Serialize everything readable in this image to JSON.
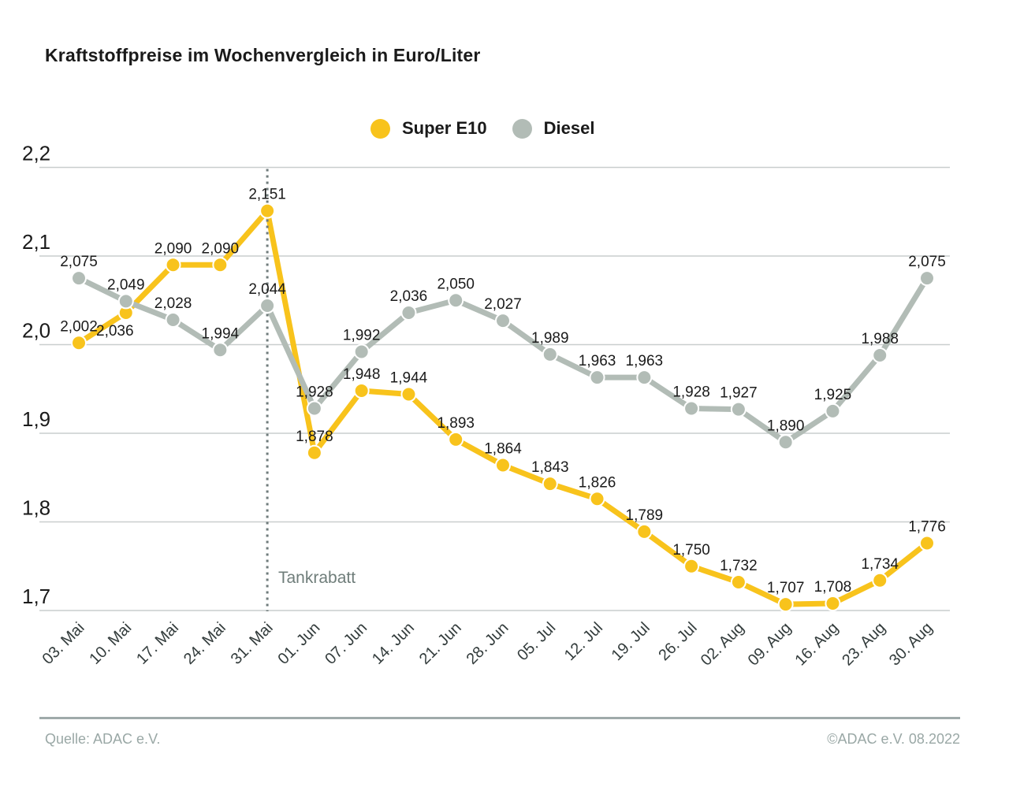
{
  "title": "Kraftstoffpreise im Wochenvergleich in Euro/Liter",
  "legend": {
    "items": [
      {
        "label": "Super E10",
        "color": "#f8c31c"
      },
      {
        "label": "Diesel",
        "color": "#b2bcb6"
      }
    ]
  },
  "annotation": {
    "label": "Tankrabatt",
    "x_index": 4
  },
  "footer": {
    "source": "Quelle: ADAC e.V.",
    "copyright": "©ADAC e.V.  08.2022"
  },
  "chart_data": {
    "type": "line",
    "title": "Kraftstoffpreise im Wochenvergleich in Euro/Liter",
    "categories": [
      "03. Mai",
      "10. Mai",
      "17. Mai",
      "24. Mai",
      "31. Mai",
      "01. Jun",
      "07. Jun",
      "14. Jun",
      "21. Jun",
      "28. Jun",
      "05. Jul",
      "12. Jul",
      "19. Jul",
      "26. Jul",
      "02. Aug",
      "09. Aug",
      "16. Aug",
      "23. Aug",
      "30. Aug"
    ],
    "series": [
      {
        "name": "Super E10",
        "color": "#f8c31c",
        "values": [
          2.002,
          2.036,
          2.09,
          2.09,
          2.151,
          1.878,
          1.948,
          1.944,
          1.893,
          1.864,
          1.843,
          1.826,
          1.789,
          1.75,
          1.732,
          1.707,
          1.708,
          1.734,
          1.776
        ],
        "label_below": [
          1
        ]
      },
      {
        "name": "Diesel",
        "color": "#b2bcb6",
        "values": [
          2.075,
          2.049,
          2.028,
          1.994,
          2.044,
          1.928,
          1.992,
          2.036,
          2.05,
          2.027,
          1.989,
          1.963,
          1.963,
          1.928,
          1.927,
          1.89,
          1.925,
          1.988,
          2.075
        ],
        "label_below": []
      }
    ],
    "ylim": [
      1.7,
      2.2
    ],
    "yticks": [
      2.2,
      2.1,
      2.0,
      1.9,
      1.8,
      1.7
    ],
    "ytick_labels": [
      "2,2",
      "2,1",
      "2,0",
      "1,9",
      "1,8",
      "1,7"
    ],
    "grid": true,
    "legend_position": "top-center",
    "decimal_separator": ","
  }
}
